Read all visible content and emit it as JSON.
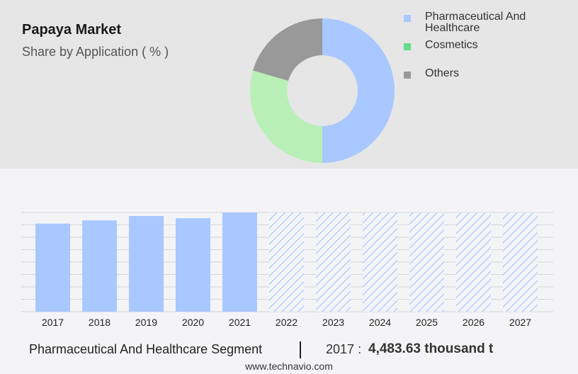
{
  "header": {
    "title": "Papaya Market",
    "subtitle": "Share by Application ( % )"
  },
  "donut_chart": {
    "type": "pie",
    "segments": [
      {
        "label": "Pharmaceutical And Healthcare",
        "share": 50,
        "color": "#a8c8ff"
      },
      {
        "label": "Cosmetics",
        "share": 29.5,
        "color": "#b8f0b8"
      },
      {
        "label": "Others",
        "share": 20.5,
        "color": "#999999"
      }
    ],
    "legend": [
      {
        "label_lines": [
          "Pharmaceutical And",
          "Healthcare"
        ],
        "color": "#a8c8ff"
      },
      {
        "label_lines": [
          "Cosmetics"
        ],
        "color": "#66dd88"
      },
      {
        "label_lines": [
          "Others"
        ],
        "color": "#999999"
      }
    ]
  },
  "chart_data": {
    "type": "bar",
    "categories": [
      "2017",
      "2018",
      "2019",
      "2020",
      "2021",
      "2022",
      "2023",
      "2024",
      "2025",
      "2026",
      "2027"
    ],
    "values": [
      4483.63,
      4650,
      4870,
      4760,
      5050,
      null,
      null,
      null,
      null,
      null,
      null
    ],
    "forecast_categories": [
      "2022",
      "2023",
      "2024",
      "2025",
      "2026",
      "2027"
    ],
    "ylim": [
      0,
      5050
    ],
    "grid": true,
    "bar_color": "#a8c8ff",
    "forecast_pattern": "diagonal-hatch"
  },
  "footer": {
    "segment_label": "Pharmaceutical And Healthcare Segment",
    "year": "2017",
    "separator": ":",
    "value": "4,483.63 thousand t",
    "source": "www.technavio.com"
  }
}
